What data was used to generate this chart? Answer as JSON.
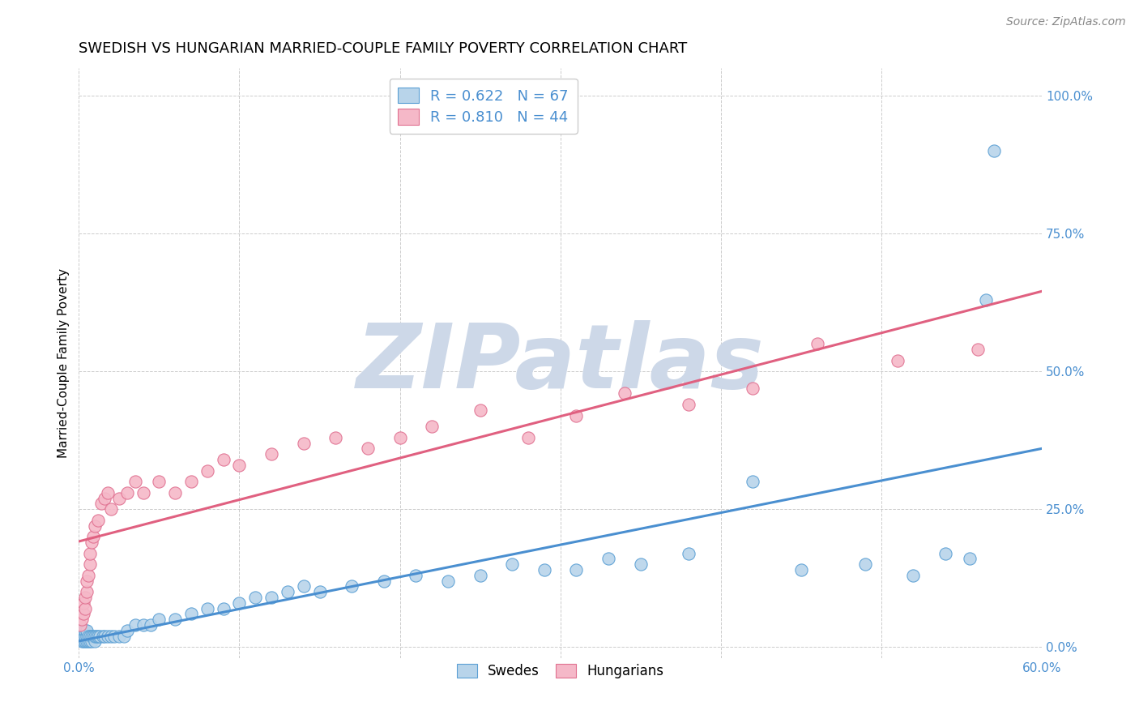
{
  "title": "SWEDISH VS HUNGARIAN MARRIED-COUPLE FAMILY POVERTY CORRELATION CHART",
  "source": "Source: ZipAtlas.com",
  "ylabel": "Married-Couple Family Poverty",
  "xlim": [
    0.0,
    0.6
  ],
  "ylim": [
    -0.02,
    1.05
  ],
  "x_ticks_bottom": [
    0.0,
    0.6
  ],
  "x_ticks_bottom_labels": [
    "0.0%",
    "60.0%"
  ],
  "y_ticks": [
    0.0,
    0.25,
    0.5,
    0.75,
    1.0
  ],
  "y_ticks_labels": [
    "0.0%",
    "25.0%",
    "50.0%",
    "75.0%",
    "100.0%"
  ],
  "swedes_R": 0.622,
  "swedes_N": 67,
  "hungarians_R": 0.81,
  "hungarians_N": 44,
  "swede_color": "#b8d4ea",
  "hungarian_color": "#f5b8c8",
  "swede_edge_color": "#5a9fd4",
  "hungarian_edge_color": "#e07090",
  "swede_line_color": "#4a8fd0",
  "hungarian_line_color": "#e06080",
  "legend_label_swedes": "Swedes",
  "legend_label_hungarians": "Hungarians",
  "watermark_text": "ZIPatlas",
  "watermark_color": "#cdd8e8",
  "title_fontsize": 13,
  "label_fontsize": 11,
  "tick_fontsize": 11,
  "source_fontsize": 10,
  "grid_color": "#cccccc",
  "tick_color": "#4a8fd0",
  "swedes_x": [
    0.001,
    0.001,
    0.002,
    0.002,
    0.002,
    0.003,
    0.003,
    0.003,
    0.004,
    0.004,
    0.004,
    0.005,
    0.005,
    0.005,
    0.006,
    0.006,
    0.007,
    0.007,
    0.008,
    0.008,
    0.009,
    0.01,
    0.01,
    0.011,
    0.012,
    0.013,
    0.015,
    0.016,
    0.018,
    0.02,
    0.022,
    0.025,
    0.028,
    0.03,
    0.035,
    0.04,
    0.045,
    0.05,
    0.06,
    0.07,
    0.08,
    0.09,
    0.1,
    0.11,
    0.12,
    0.13,
    0.14,
    0.15,
    0.17,
    0.19,
    0.21,
    0.23,
    0.25,
    0.27,
    0.29,
    0.31,
    0.33,
    0.35,
    0.38,
    0.42,
    0.45,
    0.49,
    0.52,
    0.54,
    0.555,
    0.565,
    0.57
  ],
  "swedes_y": [
    0.02,
    0.03,
    0.01,
    0.02,
    0.03,
    0.01,
    0.02,
    0.03,
    0.01,
    0.02,
    0.03,
    0.01,
    0.02,
    0.03,
    0.01,
    0.02,
    0.01,
    0.02,
    0.01,
    0.02,
    0.02,
    0.01,
    0.02,
    0.02,
    0.02,
    0.02,
    0.02,
    0.02,
    0.02,
    0.02,
    0.02,
    0.02,
    0.02,
    0.03,
    0.04,
    0.04,
    0.04,
    0.05,
    0.05,
    0.06,
    0.07,
    0.07,
    0.08,
    0.09,
    0.09,
    0.1,
    0.11,
    0.1,
    0.11,
    0.12,
    0.13,
    0.12,
    0.13,
    0.15,
    0.14,
    0.14,
    0.16,
    0.15,
    0.17,
    0.3,
    0.14,
    0.15,
    0.13,
    0.17,
    0.16,
    0.63,
    0.9
  ],
  "hungarians_x": [
    0.001,
    0.002,
    0.003,
    0.003,
    0.004,
    0.004,
    0.005,
    0.005,
    0.006,
    0.007,
    0.007,
    0.008,
    0.009,
    0.01,
    0.012,
    0.014,
    0.016,
    0.018,
    0.02,
    0.025,
    0.03,
    0.035,
    0.04,
    0.05,
    0.06,
    0.07,
    0.08,
    0.09,
    0.1,
    0.12,
    0.14,
    0.16,
    0.18,
    0.2,
    0.22,
    0.25,
    0.28,
    0.31,
    0.34,
    0.38,
    0.42,
    0.46,
    0.51,
    0.56
  ],
  "hungarians_y": [
    0.04,
    0.05,
    0.06,
    0.08,
    0.07,
    0.09,
    0.1,
    0.12,
    0.13,
    0.15,
    0.17,
    0.19,
    0.2,
    0.22,
    0.23,
    0.26,
    0.27,
    0.28,
    0.25,
    0.27,
    0.28,
    0.3,
    0.28,
    0.3,
    0.28,
    0.3,
    0.32,
    0.34,
    0.33,
    0.35,
    0.37,
    0.38,
    0.36,
    0.38,
    0.4,
    0.43,
    0.38,
    0.42,
    0.46,
    0.44,
    0.47,
    0.55,
    0.52,
    0.54
  ]
}
